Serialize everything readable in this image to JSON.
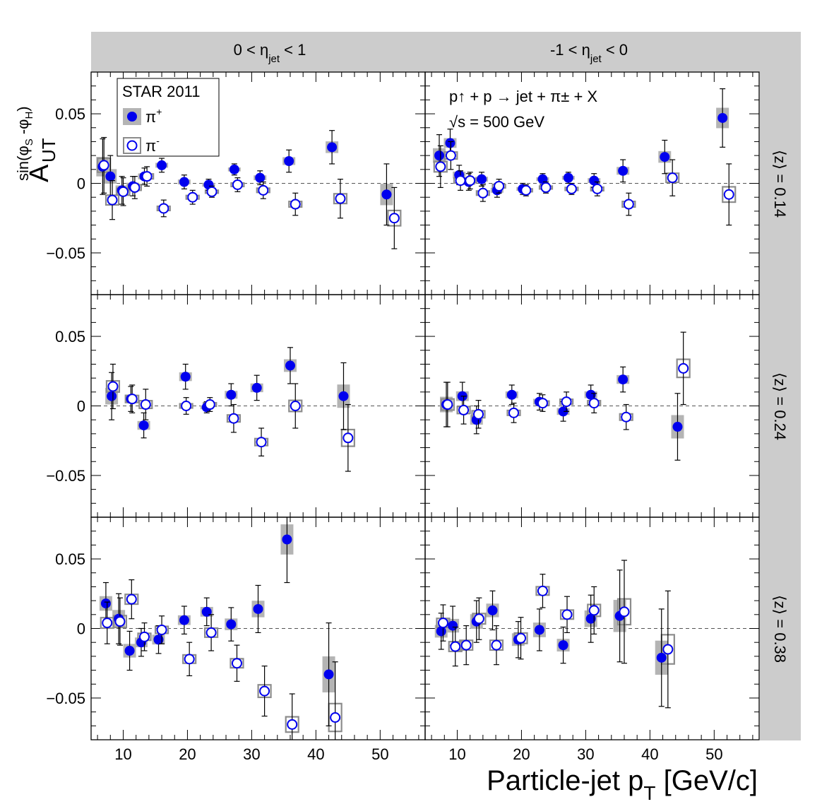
{
  "figure": {
    "y_title": {
      "main": "A",
      "sub": "UT",
      "sup": "sin(φ",
      "sup_sub1": "S",
      "sup_mid": " -φ",
      "sup_sub2": "H",
      "sup_end": ")"
    },
    "x_title": {
      "main": "Particle-jet p",
      "sub": "T",
      "end": " [GeV/c]"
    },
    "columns": [
      {
        "label_pre": "0 < η",
        "label_sub": "jet",
        "label_post": " < 1"
      },
      {
        "label_pre": "-1 < η",
        "label_sub": "jet",
        "label_post": " < 0"
      }
    ],
    "rows": [
      {
        "label": "⟨z⟩ = 0.14"
      },
      {
        "label": "⟨z⟩ = 0.24"
      },
      {
        "label": "⟨z⟩ = 0.38"
      }
    ],
    "legend": {
      "title": "STAR 2011",
      "pos_label": "π",
      "pos_sup": "+",
      "neg_label": "π",
      "neg_sup": "-",
      "position": "top-left of top-left panel"
    },
    "annotation": {
      "line1": "p↑ + p → jet + π± + X",
      "line2": "√s = 500 GeV"
    },
    "colors": {
      "pi_plus": "#0000ee",
      "pi_minus": "#0000ee",
      "sys_plus": "#b4b4b4",
      "sys_minus": "#8c8c8c",
      "strip": "#cccccc"
    }
  },
  "chart_data": {
    "type": "scatter",
    "xlabel": "Particle-jet pT [GeV/c]",
    "ylabel": "A_UT^{sin(φS-φH)}",
    "xlim": [
      5,
      57
    ],
    "ylim": [
      -0.08,
      0.08
    ],
    "xticks": [
      10,
      20,
      30,
      40,
      50
    ],
    "yticks": [
      -0.05,
      0,
      0.05
    ],
    "ytick_labels": [
      "−0.05",
      "0",
      "0.05"
    ],
    "grid": false,
    "reference_line": 0,
    "panels": [
      {
        "eta": "0 < ηjet < 1",
        "z": "0.14",
        "pi_plus": [
          {
            "x": 6.8,
            "y": 0.012,
            "e": 0.02
          },
          {
            "x": 8.0,
            "y": 0.005,
            "e": 0.015
          },
          {
            "x": 9.8,
            "y": -0.005,
            "e": 0.01
          },
          {
            "x": 11.5,
            "y": -0.002,
            "e": 0.007
          },
          {
            "x": 13.3,
            "y": 0.005,
            "e": 0.006
          },
          {
            "x": 16.0,
            "y": 0.013,
            "e": 0.005
          },
          {
            "x": 19.5,
            "y": 0.001,
            "e": 0.005
          },
          {
            "x": 23.3,
            "y": -0.001,
            "e": 0.004
          },
          {
            "x": 27.3,
            "y": 0.01,
            "e": 0.004
          },
          {
            "x": 31.3,
            "y": 0.004,
            "e": 0.005
          },
          {
            "x": 35.8,
            "y": 0.016,
            "e": 0.008
          },
          {
            "x": 42.5,
            "y": 0.026,
            "e": 0.012
          },
          {
            "x": 51.0,
            "y": -0.008,
            "e": 0.022
          }
        ],
        "pi_minus": [
          {
            "x": 7.0,
            "y": 0.013,
            "e": 0.02
          },
          {
            "x": 8.3,
            "y": -0.012,
            "e": 0.014
          },
          {
            "x": 10.0,
            "y": -0.006,
            "e": 0.01
          },
          {
            "x": 11.8,
            "y": -0.003,
            "e": 0.008
          },
          {
            "x": 13.7,
            "y": 0.005,
            "e": 0.007
          },
          {
            "x": 16.3,
            "y": -0.018,
            "e": 0.006
          },
          {
            "x": 20.8,
            "y": -0.01,
            "e": 0.005
          },
          {
            "x": 23.8,
            "y": -0.006,
            "e": 0.004
          },
          {
            "x": 27.8,
            "y": -0.001,
            "e": 0.005
          },
          {
            "x": 31.8,
            "y": -0.005,
            "e": 0.006
          },
          {
            "x": 36.8,
            "y": -0.015,
            "e": 0.008
          },
          {
            "x": 43.8,
            "y": -0.011,
            "e": 0.014
          },
          {
            "x": 52.2,
            "y": -0.025,
            "e": 0.022
          }
        ]
      },
      {
        "eta": "-1 < ηjet < 0",
        "z": "0.14",
        "pi_plus": [
          {
            "x": 7.2,
            "y": 0.02,
            "e": 0.015
          },
          {
            "x": 8.9,
            "y": 0.029,
            "e": 0.01
          },
          {
            "x": 10.3,
            "y": 0.006,
            "e": 0.007
          },
          {
            "x": 11.8,
            "y": 0.001,
            "e": 0.006
          },
          {
            "x": 13.8,
            "y": 0.003,
            "e": 0.005
          },
          {
            "x": 16.2,
            "y": -0.005,
            "e": 0.005
          },
          {
            "x": 20.2,
            "y": -0.004,
            "e": 0.004
          },
          {
            "x": 23.3,
            "y": 0.003,
            "e": 0.004
          },
          {
            "x": 27.3,
            "y": 0.004,
            "e": 0.004
          },
          {
            "x": 31.3,
            "y": 0.002,
            "e": 0.005
          },
          {
            "x": 35.8,
            "y": 0.009,
            "e": 0.008
          },
          {
            "x": 42.3,
            "y": 0.019,
            "e": 0.012
          },
          {
            "x": 51.3,
            "y": 0.047,
            "e": 0.021
          }
        ],
        "pi_minus": [
          {
            "x": 7.4,
            "y": 0.012,
            "e": 0.015
          },
          {
            "x": 9.0,
            "y": 0.02,
            "e": 0.01
          },
          {
            "x": 10.5,
            "y": 0.002,
            "e": 0.007
          },
          {
            "x": 12.0,
            "y": 0.002,
            "e": 0.006
          },
          {
            "x": 14.0,
            "y": -0.007,
            "e": 0.006
          },
          {
            "x": 16.5,
            "y": -0.002,
            "e": 0.005
          },
          {
            "x": 20.7,
            "y": -0.005,
            "e": 0.004
          },
          {
            "x": 23.8,
            "y": -0.003,
            "e": 0.004
          },
          {
            "x": 27.8,
            "y": -0.004,
            "e": 0.004
          },
          {
            "x": 31.8,
            "y": -0.004,
            "e": 0.005
          },
          {
            "x": 36.7,
            "y": -0.015,
            "e": 0.008
          },
          {
            "x": 43.5,
            "y": 0.004,
            "e": 0.013
          },
          {
            "x": 52.3,
            "y": -0.008,
            "e": 0.022
          }
        ]
      },
      {
        "eta": "0 < ηjet < 1",
        "z": "0.24",
        "pi_plus": [
          {
            "x": 8.2,
            "y": 0.007,
            "e": 0.017
          },
          {
            "x": 11.2,
            "y": 0.005,
            "e": 0.009
          },
          {
            "x": 13.2,
            "y": -0.014,
            "e": 0.009
          },
          {
            "x": 19.7,
            "y": 0.021,
            "e": 0.009
          },
          {
            "x": 23.0,
            "y": -0.001,
            "e": 0.004
          },
          {
            "x": 26.8,
            "y": 0.008,
            "e": 0.008
          },
          {
            "x": 30.8,
            "y": 0.013,
            "e": 0.009
          },
          {
            "x": 36.0,
            "y": 0.029,
            "e": 0.013
          },
          {
            "x": 44.3,
            "y": 0.007,
            "e": 0.024
          }
        ],
        "pi_minus": [
          {
            "x": 8.4,
            "y": 0.014,
            "e": 0.016
          },
          {
            "x": 11.4,
            "y": 0.005,
            "e": 0.01
          },
          {
            "x": 13.5,
            "y": 0.001,
            "e": 0.011
          },
          {
            "x": 19.8,
            "y": 0.0,
            "e": 0.006
          },
          {
            "x": 23.5,
            "y": 0.001,
            "e": 0.005
          },
          {
            "x": 27.2,
            "y": -0.009,
            "e": 0.01
          },
          {
            "x": 31.5,
            "y": -0.026,
            "e": 0.01
          },
          {
            "x": 36.8,
            "y": 0.0,
            "e": 0.016
          },
          {
            "x": 45.0,
            "y": -0.023,
            "e": 0.024
          }
        ]
      },
      {
        "eta": "-1 < ηjet < 0",
        "z": "0.24",
        "pi_plus": [
          {
            "x": 8.3,
            "y": 0.001,
            "e": 0.016
          },
          {
            "x": 10.8,
            "y": 0.007,
            "e": 0.01
          },
          {
            "x": 13.0,
            "y": -0.01,
            "e": 0.01
          },
          {
            "x": 18.5,
            "y": 0.008,
            "e": 0.007
          },
          {
            "x": 22.8,
            "y": 0.003,
            "e": 0.006
          },
          {
            "x": 26.5,
            "y": -0.004,
            "e": 0.007
          },
          {
            "x": 30.8,
            "y": 0.008,
            "e": 0.007
          },
          {
            "x": 35.8,
            "y": 0.019,
            "e": 0.009
          },
          {
            "x": 44.3,
            "y": -0.015,
            "e": 0.024
          }
        ],
        "pi_minus": [
          {
            "x": 8.5,
            "y": 0.001,
            "e": 0.016
          },
          {
            "x": 11.0,
            "y": -0.003,
            "e": 0.01
          },
          {
            "x": 13.3,
            "y": -0.006,
            "e": 0.01
          },
          {
            "x": 18.8,
            "y": -0.005,
            "e": 0.007
          },
          {
            "x": 23.3,
            "y": 0.002,
            "e": 0.006
          },
          {
            "x": 27.0,
            "y": 0.003,
            "e": 0.007
          },
          {
            "x": 31.3,
            "y": 0.002,
            "e": 0.007
          },
          {
            "x": 36.3,
            "y": -0.008,
            "e": 0.009
          },
          {
            "x": 45.2,
            "y": 0.027,
            "e": 0.026
          }
        ]
      },
      {
        "eta": "0 < ηjet < 1",
        "z": "0.38",
        "pi_plus": [
          {
            "x": 7.3,
            "y": 0.018,
            "e": 0.015
          },
          {
            "x": 9.3,
            "y": 0.007,
            "e": 0.018
          },
          {
            "x": 11.0,
            "y": -0.016,
            "e": 0.014
          },
          {
            "x": 12.8,
            "y": -0.01,
            "e": 0.01
          },
          {
            "x": 15.5,
            "y": -0.008,
            "e": 0.01
          },
          {
            "x": 19.5,
            "y": 0.006,
            "e": 0.01
          },
          {
            "x": 23.0,
            "y": 0.012,
            "e": 0.01
          },
          {
            "x": 26.8,
            "y": 0.003,
            "e": 0.012
          },
          {
            "x": 31.0,
            "y": 0.014,
            "e": 0.017
          },
          {
            "x": 35.5,
            "y": 0.064,
            "e": 0.031
          },
          {
            "x": 42.0,
            "y": -0.033,
            "e": 0.037
          }
        ],
        "pi_minus": [
          {
            "x": 7.5,
            "y": 0.004,
            "e": 0.015
          },
          {
            "x": 9.5,
            "y": 0.005,
            "e": 0.017
          },
          {
            "x": 11.3,
            "y": 0.021,
            "e": 0.014
          },
          {
            "x": 13.3,
            "y": -0.006,
            "e": 0.01
          },
          {
            "x": 16.0,
            "y": -0.001,
            "e": 0.01
          },
          {
            "x": 20.3,
            "y": -0.022,
            "e": 0.012
          },
          {
            "x": 23.7,
            "y": -0.003,
            "e": 0.013
          },
          {
            "x": 27.7,
            "y": -0.025,
            "e": 0.013
          },
          {
            "x": 32.0,
            "y": -0.045,
            "e": 0.018
          },
          {
            "x": 36.3,
            "y": -0.069,
            "e": 0.022
          },
          {
            "x": 43.0,
            "y": -0.064,
            "e": 0.04
          }
        ]
      },
      {
        "eta": "-1 < ηjet < 0",
        "z": "0.38",
        "pi_plus": [
          {
            "x": 7.5,
            "y": -0.002,
            "e": 0.013
          },
          {
            "x": 9.3,
            "y": 0.002,
            "e": 0.014
          },
          {
            "x": 13.0,
            "y": 0.005,
            "e": 0.015
          },
          {
            "x": 15.5,
            "y": 0.013,
            "e": 0.014
          },
          {
            "x": 19.5,
            "y": -0.008,
            "e": 0.013
          },
          {
            "x": 22.8,
            "y": -0.001,
            "e": 0.015
          },
          {
            "x": 26.5,
            "y": -0.012,
            "e": 0.013
          },
          {
            "x": 30.8,
            "y": 0.007,
            "e": 0.017
          },
          {
            "x": 35.3,
            "y": 0.009,
            "e": 0.033
          },
          {
            "x": 41.8,
            "y": -0.021,
            "e": 0.035
          }
        ],
        "pi_minus": [
          {
            "x": 7.8,
            "y": 0.004,
            "e": 0.013
          },
          {
            "x": 9.7,
            "y": -0.013,
            "e": 0.014
          },
          {
            "x": 11.4,
            "y": -0.012,
            "e": 0.014
          },
          {
            "x": 13.4,
            "y": 0.007,
            "e": 0.015
          },
          {
            "x": 16.1,
            "y": -0.012,
            "e": 0.014
          },
          {
            "x": 19.9,
            "y": -0.007,
            "e": 0.015
          },
          {
            "x": 23.3,
            "y": 0.027,
            "e": 0.012
          },
          {
            "x": 27.1,
            "y": 0.01,
            "e": 0.013
          },
          {
            "x": 31.3,
            "y": 0.013,
            "e": 0.017
          },
          {
            "x": 36.0,
            "y": 0.012,
            "e": 0.037
          },
          {
            "x": 42.8,
            "y": -0.015,
            "e": 0.042
          }
        ]
      }
    ]
  }
}
